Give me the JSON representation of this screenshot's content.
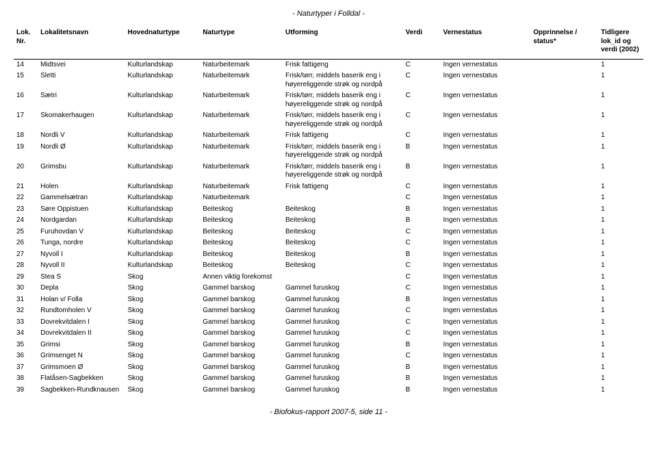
{
  "header_text": "- Naturtyper i Folldal -",
  "footer_text": "- Biofokus-rapport 2007-5, side 11 -",
  "columns": {
    "loknr": "Lok. Nr.",
    "lokname": "Lokalitetsnavn",
    "hoved": "Hovednaturtype",
    "natur": "Naturtype",
    "utform": "Utforming",
    "verdi": "Verdi",
    "verne": "Vernestatus",
    "oppr": "Opprinnelse / status*",
    "tidl": "Tidligere lok_id og verdi (2002)"
  },
  "rows": [
    {
      "nr": "14",
      "navn": "Midtsvei",
      "hoved": "Kulturlandskap",
      "natur": "Naturbeitemark",
      "utform": "Frisk fattigeng",
      "verdi": "C",
      "verne": "Ingen vernestatus",
      "oppr": "",
      "tidl": "1"
    },
    {
      "nr": "15",
      "navn": "Sletti",
      "hoved": "Kulturlandskap",
      "natur": "Naturbeitemark",
      "utform": "Frisk/tørr, middels baserik eng i høyereliggende strøk og nordpå",
      "verdi": "C",
      "verne": "Ingen vernestatus",
      "oppr": "",
      "tidl": "1"
    },
    {
      "nr": "16",
      "navn": "Sætri",
      "hoved": "Kulturlandskap",
      "natur": "Naturbeitemark",
      "utform": "Frisk/tørr, middels baserik eng i høyereliggende strøk og nordpå",
      "verdi": "C",
      "verne": "Ingen vernestatus",
      "oppr": "",
      "tidl": "1"
    },
    {
      "nr": "17",
      "navn": "Skomakerhaugen",
      "hoved": "Kulturlandskap",
      "natur": "Naturbeitemark",
      "utform": "Frisk/tørr, middels baserik eng i høyereliggende strøk og nordpå",
      "verdi": "C",
      "verne": "Ingen vernestatus",
      "oppr": "",
      "tidl": "1"
    },
    {
      "nr": "18",
      "navn": "Nordli V",
      "hoved": "Kulturlandskap",
      "natur": "Naturbeitemark",
      "utform": "Frisk fattigeng",
      "verdi": "C",
      "verne": "Ingen vernestatus",
      "oppr": "",
      "tidl": "1"
    },
    {
      "nr": "19",
      "navn": "Nordli Ø",
      "hoved": "Kulturlandskap",
      "natur": "Naturbeitemark",
      "utform": "Frisk/tørr, middels baserik eng i høyereliggende strøk og nordpå",
      "verdi": "B",
      "verne": "Ingen vernestatus",
      "oppr": "",
      "tidl": "1"
    },
    {
      "nr": "20",
      "navn": "Grimsbu",
      "hoved": "Kulturlandskap",
      "natur": "Naturbeitemark",
      "utform": "Frisk/tørr, middels baserik eng i høyereliggende strøk og nordpå",
      "verdi": "B",
      "verne": "Ingen vernestatus",
      "oppr": "",
      "tidl": "1"
    },
    {
      "nr": "21",
      "navn": "Holen",
      "hoved": "Kulturlandskap",
      "natur": "Naturbeitemark",
      "utform": "Frisk fattigeng",
      "verdi": "C",
      "verne": "Ingen vernestatus",
      "oppr": "",
      "tidl": "1"
    },
    {
      "nr": "22",
      "navn": "Gammelsætran",
      "hoved": "Kulturlandskap",
      "natur": "Naturbeitemark",
      "utform": "",
      "verdi": "C",
      "verne": "Ingen vernestatus",
      "oppr": "",
      "tidl": "1"
    },
    {
      "nr": "23",
      "navn": "Søre Oppistuen",
      "hoved": "Kulturlandskap",
      "natur": "Beiteskog",
      "utform": "Beiteskog",
      "verdi": "B",
      "verne": "Ingen vernestatus",
      "oppr": "",
      "tidl": "1"
    },
    {
      "nr": "24",
      "navn": "Nordgardan",
      "hoved": "Kulturlandskap",
      "natur": "Beiteskog",
      "utform": "Beiteskog",
      "verdi": "B",
      "verne": "Ingen vernestatus",
      "oppr": "",
      "tidl": "1"
    },
    {
      "nr": "25",
      "navn": "Furuhovdan V",
      "hoved": "Kulturlandskap",
      "natur": "Beiteskog",
      "utform": "Beiteskog",
      "verdi": "C",
      "verne": "Ingen vernestatus",
      "oppr": "",
      "tidl": "1"
    },
    {
      "nr": "26",
      "navn": "Tunga, nordre",
      "hoved": "Kulturlandskap",
      "natur": "Beiteskog",
      "utform": "Beiteskog",
      "verdi": "C",
      "verne": "Ingen vernestatus",
      "oppr": "",
      "tidl": "1"
    },
    {
      "nr": "27",
      "navn": "Nyvoll I",
      "hoved": "Kulturlandskap",
      "natur": "Beiteskog",
      "utform": "Beiteskog",
      "verdi": "B",
      "verne": "Ingen vernestatus",
      "oppr": "",
      "tidl": "1"
    },
    {
      "nr": "28",
      "navn": "Nyvoll II",
      "hoved": "Kulturlandskap",
      "natur": "Beiteskog",
      "utform": "Beiteskog",
      "verdi": "C",
      "verne": "Ingen vernestatus",
      "oppr": "",
      "tidl": "1"
    },
    {
      "nr": "29",
      "navn": "Stea S",
      "hoved": "Skog",
      "natur": "Annen viktig forekomst",
      "utform": "",
      "verdi": "C",
      "verne": "Ingen vernestatus",
      "oppr": "",
      "tidl": "1"
    },
    {
      "nr": "30",
      "navn": "Depla",
      "hoved": "Skog",
      "natur": "Gammel barskog",
      "utform": "Gammel furuskog",
      "verdi": "C",
      "verne": "Ingen vernestatus",
      "oppr": "",
      "tidl": "1"
    },
    {
      "nr": "31",
      "navn": "Holan v/ Folla",
      "hoved": "Skog",
      "natur": "Gammel barskog",
      "utform": "Gammel furuskog",
      "verdi": "B",
      "verne": "Ingen vernestatus",
      "oppr": "",
      "tidl": "1"
    },
    {
      "nr": "32",
      "navn": "Rundtomholen V",
      "hoved": "Skog",
      "natur": "Gammel barskog",
      "utform": "Gammel furuskog",
      "verdi": "C",
      "verne": "Ingen vernestatus",
      "oppr": "",
      "tidl": "1"
    },
    {
      "nr": "33",
      "navn": "Dovrekvitdalen I",
      "hoved": "Skog",
      "natur": "Gammel barskog",
      "utform": "Gammel furuskog",
      "verdi": "C",
      "verne": "Ingen vernestatus",
      "oppr": "",
      "tidl": "1"
    },
    {
      "nr": "34",
      "navn": "Dovrekvitdalen II",
      "hoved": "Skog",
      "natur": "Gammel barskog",
      "utform": "Gammel furuskog",
      "verdi": "C",
      "verne": "Ingen vernestatus",
      "oppr": "",
      "tidl": "1"
    },
    {
      "nr": "35",
      "navn": "Grimsi",
      "hoved": "Skog",
      "natur": "Gammel barskog",
      "utform": "Gammel furuskog",
      "verdi": "B",
      "verne": "Ingen vernestatus",
      "oppr": "",
      "tidl": "1"
    },
    {
      "nr": "36",
      "navn": "Grimsenget N",
      "hoved": "Skog",
      "natur": "Gammel barskog",
      "utform": "Gammel furuskog",
      "verdi": "C",
      "verne": "Ingen vernestatus",
      "oppr": "",
      "tidl": "1"
    },
    {
      "nr": "37",
      "navn": "Grimsmoen Ø",
      "hoved": "Skog",
      "natur": "Gammel barskog",
      "utform": "Gammel furuskog",
      "verdi": "B",
      "verne": "Ingen vernestatus",
      "oppr": "",
      "tidl": "1"
    },
    {
      "nr": "38",
      "navn": "Flatåsen-Sagbekken",
      "hoved": "Skog",
      "natur": "Gammel barskog",
      "utform": "Gammel furuskog",
      "verdi": "B",
      "verne": "Ingen vernestatus",
      "oppr": "",
      "tidl": "1"
    },
    {
      "nr": "39",
      "navn": "Sagbekken-Rundknausen",
      "hoved": "Skog",
      "natur": "Gammel barskog",
      "utform": "Gammel furuskog",
      "verdi": "B",
      "verne": "Ingen vernestatus",
      "oppr": "",
      "tidl": "1"
    }
  ]
}
